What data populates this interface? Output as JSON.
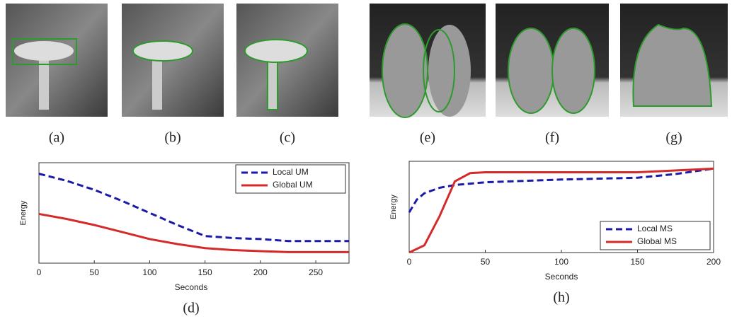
{
  "panels": [
    {
      "label": "(a)"
    },
    {
      "label": "(b)"
    },
    {
      "label": "(c)"
    },
    {
      "label": "(e)"
    },
    {
      "label": "(f)"
    },
    {
      "label": "(g)"
    }
  ],
  "chart_data": [
    {
      "type": "line",
      "xlabel": "Seconds",
      "ylabel": "Energy",
      "caption": "(d)",
      "xlim": [
        0,
        280
      ],
      "xticks": [
        0,
        50,
        100,
        150,
        200,
        250
      ],
      "ylim": [
        0,
        1
      ],
      "legend": "upper-right",
      "series": [
        {
          "name": "Local UM",
          "color": "#1a1aa8",
          "dash": true,
          "x": [
            0,
            25,
            50,
            75,
            100,
            125,
            150,
            175,
            200,
            225,
            250,
            280
          ],
          "values": [
            0.89,
            0.82,
            0.73,
            0.62,
            0.5,
            0.38,
            0.27,
            0.25,
            0.24,
            0.22,
            0.22,
            0.22
          ]
        },
        {
          "name": "Global UM",
          "color": "#d42a2a",
          "dash": false,
          "x": [
            0,
            25,
            50,
            75,
            100,
            125,
            150,
            175,
            200,
            225,
            250,
            280
          ],
          "values": [
            0.49,
            0.44,
            0.38,
            0.31,
            0.24,
            0.19,
            0.15,
            0.13,
            0.12,
            0.11,
            0.11,
            0.11
          ]
        }
      ]
    },
    {
      "type": "line",
      "xlabel": "Seconds",
      "ylabel": "Energy",
      "caption": "(h)",
      "xlim": [
        0,
        200
      ],
      "xticks": [
        0,
        50,
        100,
        150,
        200
      ],
      "ylim": [
        0,
        1
      ],
      "legend": "lower-right",
      "series": [
        {
          "name": "Local MS",
          "color": "#1a1aa8",
          "dash": true,
          "x": [
            0,
            5,
            10,
            20,
            30,
            50,
            100,
            150,
            175,
            200
          ],
          "values": [
            0.44,
            0.58,
            0.65,
            0.71,
            0.74,
            0.77,
            0.8,
            0.82,
            0.86,
            0.92
          ]
        },
        {
          "name": "Global MS",
          "color": "#d42a2a",
          "dash": false,
          "x": [
            0,
            10,
            20,
            30,
            40,
            50,
            100,
            150,
            200
          ],
          "values": [
            0,
            0.08,
            0.4,
            0.78,
            0.87,
            0.88,
            0.88,
            0.88,
            0.92
          ]
        }
      ]
    }
  ]
}
